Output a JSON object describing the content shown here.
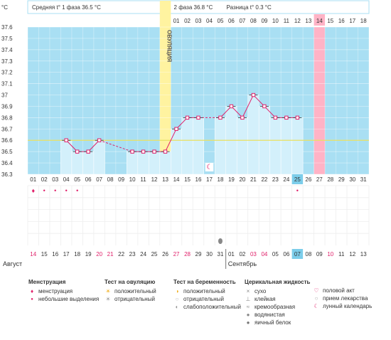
{
  "header": {
    "phase1_label": "Средняя t° 1 фаза 36.5 °C",
    "phase2_label": "2 фаза 36.8 °C",
    "diff_label": "Разница t° 0.3 °C",
    "unit": "°C"
  },
  "ovulation_label": "ОВУЛЯЦИЯ",
  "colors": {
    "phase1_bg": "#a9dff3",
    "phase2_bg": "#a9dff3",
    "bar": "#d3f0fb",
    "ovulation": "#fff3a0",
    "menstruation_expected": "#ffb3c6",
    "line": "#e0206a",
    "coverline": "#e8e060",
    "today": "#7ccdea"
  },
  "chart_data": {
    "type": "line",
    "ylim": [
      36.3,
      37.6
    ],
    "y_ticks": [
      "36.3",
      "36.4",
      "36.5",
      "36.6",
      "36.7",
      "36.8",
      "36.9",
      "37",
      "37.1",
      "37.2",
      "37.3",
      "37.4",
      "37.5",
      "37.6"
    ],
    "x_cycle_days": [
      "01",
      "02",
      "03",
      "04",
      "05",
      "06",
      "07",
      "08",
      "09",
      "10",
      "11",
      "12",
      "13",
      "14",
      "15",
      "16",
      "17",
      "18",
      "19",
      "20",
      "21",
      "22",
      "23",
      "24",
      "25",
      "26",
      "27",
      "28",
      "29",
      "30",
      "31"
    ],
    "x_dates": [
      "14",
      "15",
      "16",
      "17",
      "18",
      "19",
      "20",
      "21",
      "22",
      "23",
      "24",
      "25",
      "26",
      "27",
      "28",
      "29",
      "30",
      "31",
      "01",
      "02",
      "03",
      "04",
      "05",
      "06",
      "07",
      "08",
      "09",
      "10",
      "11",
      "12",
      "13"
    ],
    "x_phase2_days": [
      "01",
      "02",
      "03",
      "04",
      "05",
      "06",
      "07",
      "08",
      "09",
      "10",
      "11",
      "12",
      "13",
      "14",
      "15",
      "16",
      "17",
      "18"
    ],
    "temperatures": [
      null,
      null,
      null,
      36.6,
      36.5,
      36.5,
      36.6,
      null,
      null,
      36.5,
      36.5,
      36.5,
      36.5,
      36.7,
      36.8,
      36.8,
      null,
      36.8,
      36.9,
      36.8,
      37.0,
      36.9,
      36.8,
      36.8,
      36.8,
      null,
      null,
      null,
      null,
      null,
      null
    ],
    "coverline": 36.6,
    "ovulation_day": 13,
    "expected_menstruation_day": 27,
    "today_day": 25,
    "menstruation_days": [
      1,
      2,
      3,
      4,
      5
    ],
    "spotting_days": [
      2,
      3,
      4,
      5,
      25
    ],
    "mucus_egg_white_days": [
      18
    ],
    "intercourse_days": [],
    "lunar_marker_day": 17,
    "highlighted_date_days": [
      1,
      7,
      8,
      14,
      15,
      21,
      22,
      28
    ],
    "month_labels": [
      {
        "label": "Август",
        "day": 1
      },
      {
        "label": "Сентябрь",
        "day": 19
      }
    ]
  },
  "legend": {
    "menstruation": {
      "title": "Менструация",
      "items": [
        "менструация",
        "небольшие выделения"
      ]
    },
    "ovulation_test": {
      "title": "Тест на овуляцию",
      "items": [
        "положительный",
        "отрицательный"
      ]
    },
    "pregnancy_test": {
      "title": "Тест на беременность",
      "items": [
        "положительный",
        "отрицательный",
        "слабоположительный"
      ]
    },
    "cervical_fluid": {
      "title": "Церикальная жидкость",
      "items": [
        "сухо",
        "клейкая",
        "кремообразная",
        "водянистая",
        "яичный белок"
      ]
    },
    "other": {
      "items": [
        "половой акт",
        "прием лекарства",
        "лунный календарь"
      ]
    }
  }
}
